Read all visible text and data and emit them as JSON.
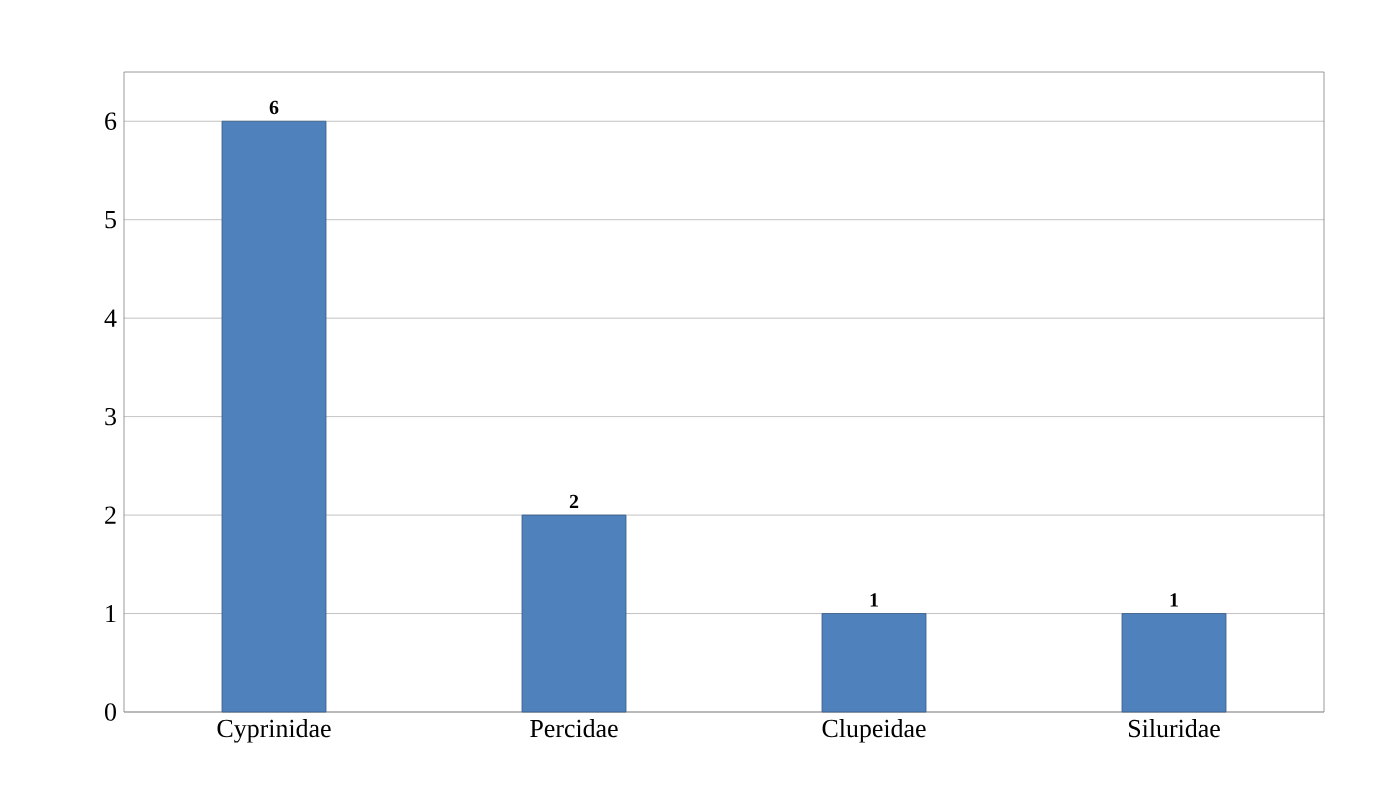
{
  "chart_data": {
    "type": "bar",
    "categories": [
      "Cyprinidae",
      "Percidae",
      "Clupeidae",
      "Siluridae"
    ],
    "values": [
      6,
      2,
      1,
      1
    ],
    "color": "#4f81bd",
    "ylim": [
      0,
      6.5
    ],
    "yticks": [
      0,
      1,
      2,
      3,
      4,
      5,
      6
    ],
    "grid": "y",
    "data_labels": true
  }
}
